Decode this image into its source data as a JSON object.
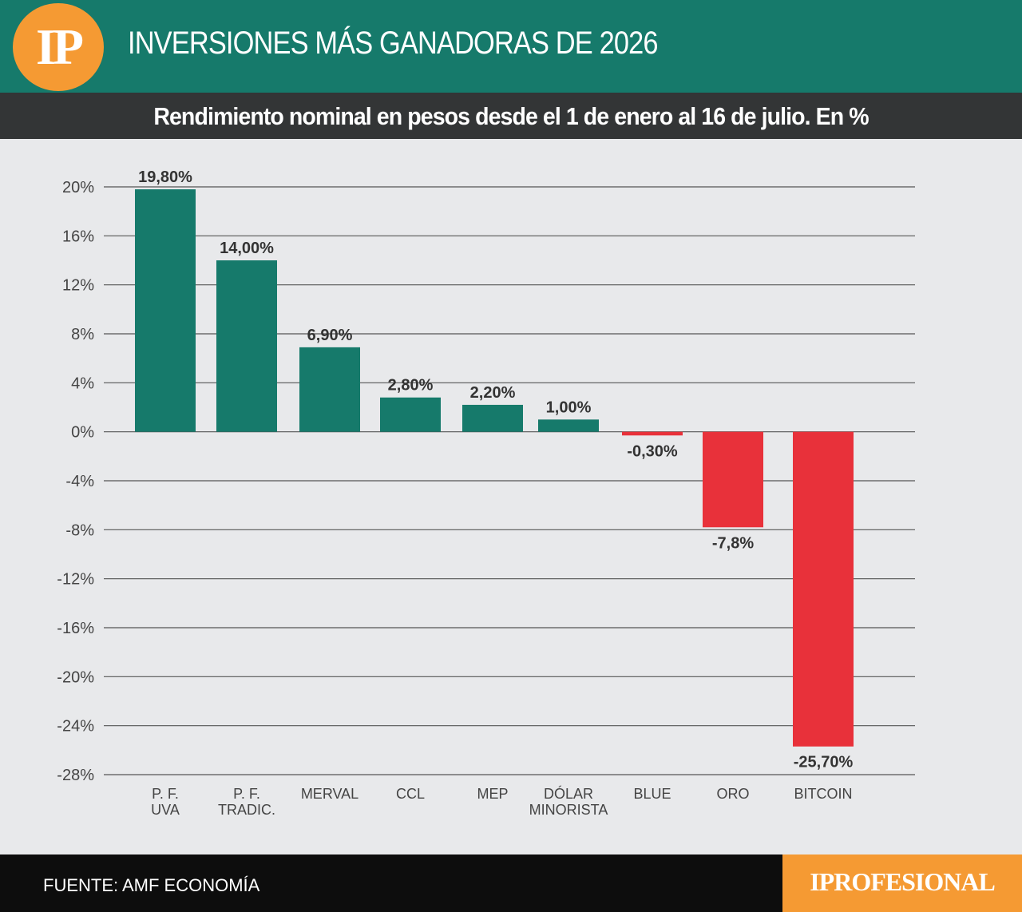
{
  "header": {
    "logo_text": "IP",
    "title": "INVERSIONES MÁS GANADORAS DE 2026",
    "subtitle": "Rendimiento nominal en pesos desde el 1 de enero al 16 de julio. En %"
  },
  "footer": {
    "source": "FUENTE: AMF ECONOMÍA",
    "brand": "IPROFESIONAL"
  },
  "colors": {
    "positive": "#167a6b",
    "negative": "#e8313a",
    "header_bg": "#167a6b",
    "subheader_bg": "#333536",
    "accent": "#f59a33",
    "background": "#e8e9eb"
  },
  "chart_data": {
    "type": "bar",
    "title": "INVERSIONES MÁS GANADORAS DE 2026",
    "subtitle": "Rendimiento nominal en pesos desde el 1 de enero al 16 de julio. En %",
    "categories": [
      [
        "P. F.",
        "UVA"
      ],
      [
        "P. F.",
        "TRADIC."
      ],
      [
        "MERVAL"
      ],
      [
        "CCL"
      ],
      [
        "MEP"
      ],
      [
        "DÓLAR",
        "MINORISTA"
      ],
      [
        "BLUE"
      ],
      [
        "ORO"
      ],
      [
        "BITCOIN"
      ]
    ],
    "values": [
      19.8,
      14.0,
      6.9,
      2.8,
      2.2,
      1.0,
      -0.3,
      -7.8,
      -25.7
    ],
    "data_labels": [
      "19,80%",
      "14,00%",
      "6,90%",
      "2,80%",
      "2,20%",
      "1,00%",
      "-0,30%",
      "-7,8%",
      "-25,70%"
    ],
    "y_ticks": [
      20,
      16,
      12,
      8,
      4,
      0,
      -4,
      -8,
      -12,
      -16,
      -20,
      -24,
      -28
    ],
    "y_tick_labels": [
      "20%",
      "16%",
      "12%",
      "8%",
      "4%",
      "0%",
      "-4%",
      "-8%",
      "-12%",
      "-16%",
      "-20%",
      "-24%",
      "-28%"
    ],
    "ylim": [
      -28,
      20
    ],
    "grid": true,
    "legend": "none"
  }
}
